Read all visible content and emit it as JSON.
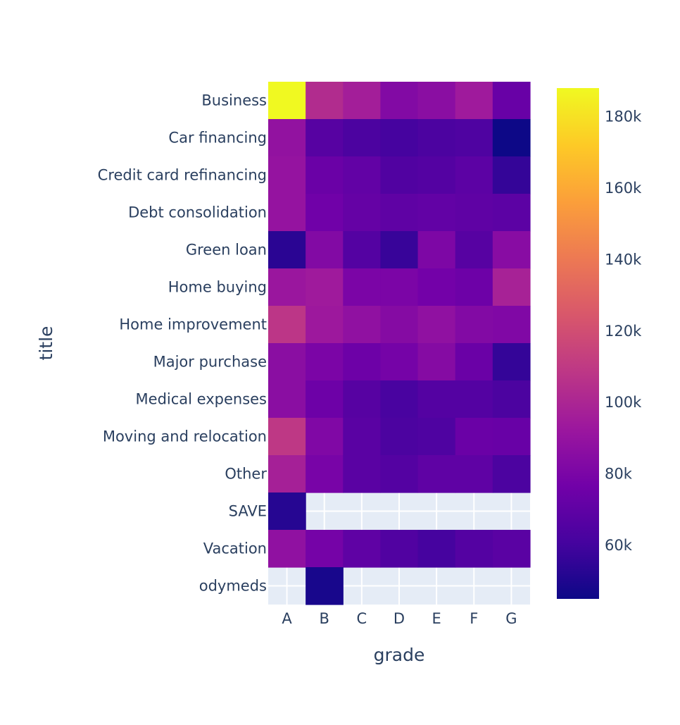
{
  "chart_data": {
    "type": "heatmap",
    "xlabel": "grade",
    "ylabel": "title",
    "x": [
      "A",
      "B",
      "C",
      "D",
      "E",
      "F",
      "G"
    ],
    "y": [
      "Business",
      "Car financing",
      "Credit card refinancing",
      "Debt consolidation",
      "Green loan",
      "Home buying",
      "Home improvement",
      "Major purchase",
      "Medical expenses",
      "Moving and relocation",
      "Other",
      "SAVE",
      "Vacation",
      "odymeds"
    ],
    "z": [
      [
        188000,
        103000,
        96000,
        83000,
        86000,
        94000,
        73000
      ],
      [
        89000,
        67000,
        63000,
        61000,
        63000,
        64000,
        45000
      ],
      [
        90000,
        74000,
        71000,
        65000,
        66000,
        69000,
        56000
      ],
      [
        90000,
        76000,
        72000,
        70000,
        71000,
        70000,
        69000
      ],
      [
        53000,
        83000,
        66000,
        57000,
        81000,
        67000,
        85000
      ],
      [
        92000,
        94000,
        80000,
        80000,
        77000,
        75000,
        98000
      ],
      [
        108000,
        93000,
        88000,
        84000,
        88000,
        83000,
        82000
      ],
      [
        86000,
        80000,
        75000,
        78000,
        84000,
        74000,
        56000
      ],
      [
        86000,
        75000,
        67000,
        62000,
        66000,
        66000,
        63000
      ],
      [
        109000,
        82000,
        68000,
        63000,
        64000,
        74000,
        73000
      ],
      [
        97000,
        79000,
        68000,
        66000,
        70000,
        70000,
        63000
      ],
      [
        52000,
        null,
        null,
        null,
        null,
        null,
        null
      ],
      [
        88000,
        78000,
        70000,
        65000,
        61000,
        66000,
        68000
      ],
      [
        null,
        48000,
        null,
        null,
        null,
        null,
        null
      ]
    ],
    "colorscale": [
      "#0d0887",
      "#46039f",
      "#7201a8",
      "#9c179e",
      "#bd3786",
      "#d8576b",
      "#ed7953",
      "#fb9f3a",
      "#fdca26",
      "#f0f921"
    ],
    "zmin": 45000,
    "zmax": 188000,
    "colorbar_ticks": [
      {
        "value": 180000,
        "label": "180k"
      },
      {
        "value": 160000,
        "label": "160k"
      },
      {
        "value": 140000,
        "label": "140k"
      },
      {
        "value": 120000,
        "label": "120k"
      },
      {
        "value": 100000,
        "label": "100k"
      },
      {
        "value": 80000,
        "label": "80k"
      },
      {
        "value": 60000,
        "label": "60k"
      }
    ],
    "plot_background": "#e5ecf6",
    "grid": true
  }
}
